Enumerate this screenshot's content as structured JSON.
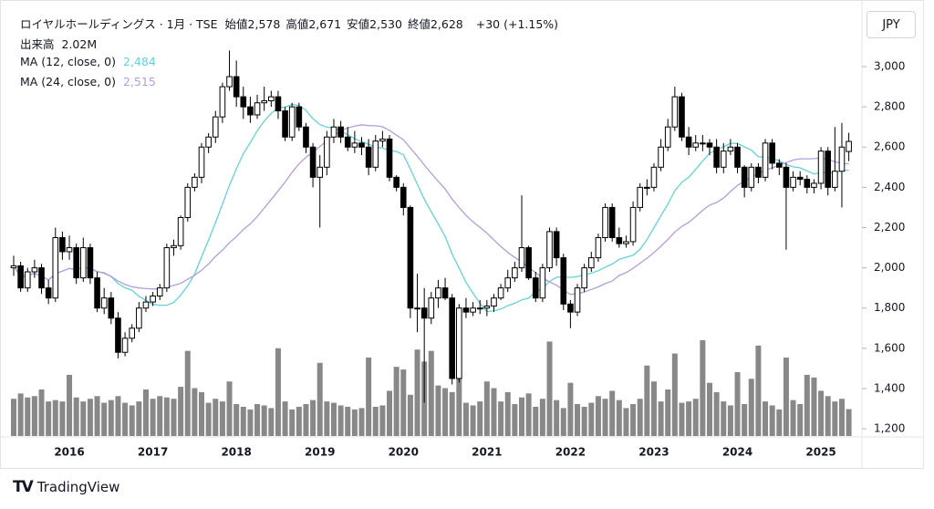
{
  "chart_data": {
    "type": "candlestick",
    "title": "ロイヤルホールディングス · 1月 · TSE",
    "ohlc_legend": [
      {
        "label": "始値",
        "value": "2,578"
      },
      {
        "label": "高値",
        "value": "2,671"
      },
      {
        "label": "安値",
        "value": "2,530"
      },
      {
        "label": "終値",
        "value": "2,628"
      }
    ],
    "change": "+30 (+1.15%)",
    "volume_label": "出来高",
    "volume_value": "2.02M",
    "currency": "JPY",
    "brand": "TradingView",
    "ma": [
      {
        "name": "MA (12, close, 0)",
        "period": 12,
        "color": "#63d3d8",
        "value_label": "2,484"
      },
      {
        "name": "MA (24, close, 0)",
        "period": 24,
        "color": "#b39ddb",
        "value_label": "2,515"
      }
    ],
    "categories": [
      null,
      null,
      null,
      null,
      null,
      null,
      null,
      null,
      "2016",
      null,
      null,
      null,
      null,
      null,
      null,
      null,
      null,
      null,
      null,
      null,
      "2017",
      null,
      null,
      null,
      null,
      null,
      null,
      null,
      null,
      null,
      null,
      null,
      "2018",
      null,
      null,
      null,
      null,
      null,
      null,
      null,
      null,
      null,
      null,
      null,
      "2019",
      null,
      null,
      null,
      null,
      null,
      null,
      null,
      null,
      null,
      null,
      null,
      "2020",
      null,
      null,
      null,
      null,
      null,
      null,
      null,
      null,
      null,
      null,
      null,
      "2021",
      null,
      null,
      null,
      null,
      null,
      null,
      null,
      null,
      null,
      null,
      null,
      "2022",
      null,
      null,
      null,
      null,
      null,
      null,
      null,
      null,
      null,
      null,
      null,
      "2023",
      null,
      null,
      null,
      null,
      null,
      null,
      null,
      null,
      null,
      null,
      null,
      "2024",
      null,
      null,
      null,
      null,
      null,
      null,
      null,
      null,
      null,
      null,
      null,
      "2025",
      null,
      null,
      null,
      null
    ],
    "open": [
      2000,
      2010,
      1900,
      1980,
      2000,
      1900,
      1850,
      2150,
      2080,
      2100,
      1950,
      2100,
      1950,
      1800,
      1850,
      1750,
      1580,
      1650,
      1700,
      1800,
      1830,
      1860,
      1900,
      2100,
      2110,
      2250,
      2400,
      2450,
      2600,
      2650,
      2750,
      2900,
      2950,
      2850,
      2800,
      2760,
      2820,
      2830,
      2850,
      2780,
      2650,
      2800,
      2700,
      2600,
      2450,
      2500,
      2650,
      2700,
      2650,
      2600,
      2620,
      2600,
      2500,
      2630,
      2640,
      2450,
      2400,
      2300,
      1800,
      1800,
      1750,
      1850,
      1900,
      1850,
      1450,
      1800,
      1780,
      1800,
      1800,
      1810,
      1850,
      1900,
      1950,
      2000,
      2100,
      1950,
      1850,
      2000,
      2180,
      2050,
      1820,
      1780,
      1900,
      2000,
      2050,
      2150,
      2300,
      2150,
      2120,
      2130,
      2300,
      2400,
      2400,
      2500,
      2600,
      2700,
      2850,
      2650,
      2600,
      2620,
      2620,
      2600,
      2500,
      2580,
      2600,
      2500,
      2400,
      2500,
      2450,
      2620,
      2520,
      2500,
      2400,
      2450,
      2440,
      2400,
      2420,
      2580,
      2400,
      2480,
      2578
    ],
    "high": [
      2060,
      2030,
      2000,
      2040,
      2020,
      1940,
      2200,
      2180,
      2160,
      2120,
      2150,
      2120,
      1980,
      1900,
      1880,
      1780,
      1680,
      1720,
      1830,
      1860,
      1880,
      1920,
      2120,
      2140,
      2260,
      2420,
      2470,
      2620,
      2670,
      2780,
      2920,
      3080,
      3030,
      2900,
      2850,
      2860,
      2900,
      2880,
      2880,
      2800,
      2820,
      2820,
      2720,
      2620,
      2560,
      2680,
      2740,
      2730,
      2700,
      2680,
      2650,
      2640,
      2660,
      2680,
      2660,
      2460,
      2420,
      2310,
      1970,
      1900,
      1880,
      1940,
      1950,
      1870,
      1820,
      1850,
      1830,
      1840,
      1840,
      1870,
      1920,
      1990,
      2030,
      2360,
      2110,
      1980,
      2020,
      2200,
      2200,
      2070,
      1840,
      1920,
      2020,
      2080,
      2170,
      2320,
      2320,
      2200,
      2160,
      2330,
      2420,
      2440,
      2520,
      2640,
      2740,
      2900,
      2870,
      2700,
      2660,
      2660,
      2640,
      2640,
      2620,
      2640,
      2620,
      2510,
      2520,
      2520,
      2640,
      2640,
      2540,
      2520,
      2480,
      2480,
      2460,
      2440,
      2600,
      2600,
      2700,
      2720,
      2671
    ],
    "low": [
      1960,
      1880,
      1880,
      1950,
      1870,
      1820,
      1830,
      2040,
      2040,
      1920,
      1930,
      1920,
      1780,
      1770,
      1720,
      1550,
      1560,
      1630,
      1680,
      1780,
      1810,
      1840,
      1880,
      2060,
      2090,
      2230,
      2380,
      2420,
      2570,
      2620,
      2720,
      2880,
      2800,
      2740,
      2720,
      2740,
      2780,
      2800,
      2740,
      2630,
      2630,
      2680,
      2570,
      2400,
      2200,
      2460,
      2620,
      2620,
      2580,
      2570,
      2560,
      2460,
      2480,
      2600,
      2430,
      2380,
      2260,
      1750,
      1680,
      1330,
      1720,
      1800,
      1840,
      1420,
      1430,
      1750,
      1760,
      1770,
      1760,
      1780,
      1840,
      1880,
      1930,
      1980,
      1940,
      1830,
      1830,
      1980,
      2010,
      1790,
      1700,
      1760,
      1880,
      1980,
      2030,
      2130,
      2130,
      2100,
      2100,
      2110,
      2280,
      2360,
      2380,
      2480,
      2580,
      2680,
      2630,
      2560,
      2580,
      2580,
      2560,
      2470,
      2470,
      2560,
      2470,
      2350,
      2380,
      2420,
      2430,
      2490,
      2460,
      2090,
      2380,
      2410,
      2370,
      2370,
      2390,
      2360,
      2380,
      2300,
      2530
    ],
    "close": [
      2010,
      1900,
      1980,
      2000,
      1900,
      1850,
      2150,
      2080,
      2100,
      1950,
      2100,
      1950,
      1800,
      1850,
      1750,
      1580,
      1650,
      1700,
      1800,
      1830,
      1860,
      1900,
      2100,
      2110,
      2250,
      2400,
      2450,
      2600,
      2650,
      2750,
      2900,
      2950,
      2850,
      2800,
      2760,
      2820,
      2830,
      2850,
      2780,
      2650,
      2800,
      2700,
      2600,
      2450,
      2500,
      2650,
      2700,
      2650,
      2600,
      2620,
      2600,
      2500,
      2630,
      2640,
      2450,
      2400,
      2300,
      1800,
      1800,
      1750,
      1850,
      1900,
      1850,
      1450,
      1800,
      1780,
      1800,
      1800,
      1810,
      1850,
      1900,
      1950,
      2000,
      2100,
      1950,
      1850,
      2000,
      2180,
      2050,
      1820,
      1780,
      1900,
      2000,
      2050,
      2150,
      2300,
      2150,
      2120,
      2130,
      2300,
      2400,
      2400,
      2500,
      2600,
      2700,
      2850,
      2650,
      2600,
      2620,
      2620,
      2600,
      2500,
      2580,
      2600,
      2500,
      2400,
      2500,
      2450,
      2620,
      2520,
      2500,
      2400,
      2450,
      2440,
      2400,
      2420,
      2580,
      2400,
      2480,
      2600,
      2628
    ],
    "volume": [
      2.8,
      3.2,
      2.9,
      3.0,
      3.5,
      2.6,
      2.7,
      2.6,
      4.6,
      2.9,
      2.6,
      2.8,
      3.0,
      2.5,
      2.7,
      3.0,
      2.5,
      2.3,
      2.6,
      3.5,
      2.8,
      3.0,
      2.9,
      2.8,
      3.7,
      6.4,
      3.6,
      3.3,
      2.5,
      2.8,
      2.6,
      4.1,
      2.4,
      2.2,
      2.0,
      2.4,
      2.3,
      2.1,
      6.6,
      2.6,
      2.0,
      2.2,
      2.4,
      2.7,
      5.5,
      2.6,
      2.5,
      2.3,
      2.2,
      2.0,
      2.1,
      5.9,
      2.2,
      2.3,
      3.4,
      5.2,
      5.0,
      3.1,
      6.5,
      5.6,
      6.4,
      3.8,
      3.6,
      3.3,
      5.8,
      2.5,
      2.3,
      2.6,
      4.1,
      3.6,
      2.6,
      3.3,
      2.4,
      2.9,
      3.2,
      2.2,
      2.8,
      7.1,
      2.7,
      2.1,
      4.0,
      2.4,
      2.2,
      2.5,
      3.0,
      2.8,
      3.4,
      2.7,
      2.1,
      2.4,
      2.8,
      5.3,
      4.1,
      2.6,
      3.5,
      6.2,
      2.5,
      2.6,
      2.8,
      7.2,
      4.0,
      3.3,
      2.6,
      2.3,
      4.8,
      2.4,
      4.3,
      6.8,
      2.6,
      2.3,
      2.0,
      5.9,
      2.7,
      2.4,
      4.6,
      4.4,
      3.4,
      3.0,
      2.6,
      2.8,
      2.02
    ],
    "ylim": [
      1164,
      3331
    ],
    "yticks": [
      {
        "value": 1200,
        "label": "1,200"
      },
      {
        "value": 1400,
        "label": "1,400"
      },
      {
        "value": 1600,
        "label": "1,600"
      },
      {
        "value": 1800,
        "label": "1,800"
      },
      {
        "value": 2000,
        "label": "2,000"
      },
      {
        "value": 2200,
        "label": "2,200"
      },
      {
        "value": 2400,
        "label": "2,400"
      },
      {
        "value": 2600,
        "label": "2,600"
      },
      {
        "value": 2800,
        "label": "2,800"
      },
      {
        "value": 3000,
        "label": "3,000"
      }
    ],
    "up_color": "#ffffff",
    "down_color": "#000000",
    "volume_color": "#888888",
    "grid": false
  }
}
